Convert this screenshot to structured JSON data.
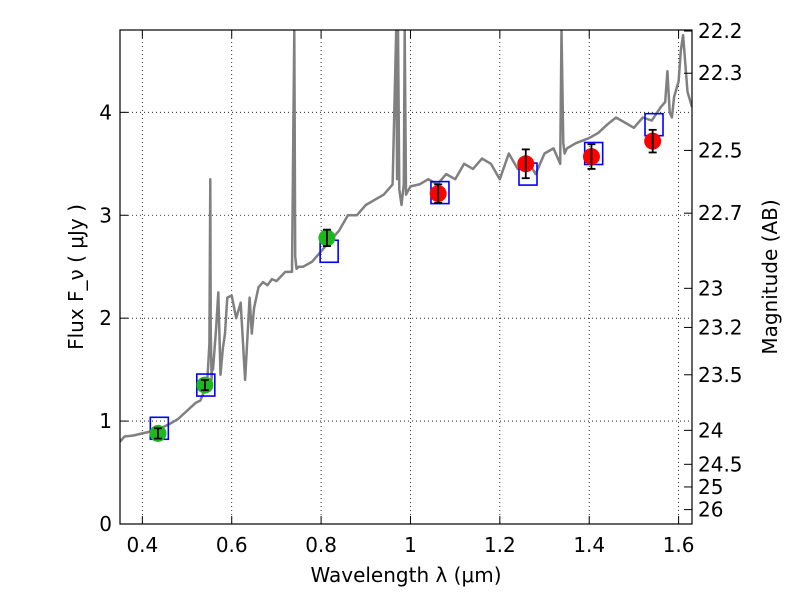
{
  "chart_data": {
    "type": "scatter",
    "xlabel": "Wavelength  λ (μm)",
    "ylabel": "Flux  F_ν  ( μJy )",
    "ylabel_right": "Magnitude (AB)",
    "xlim": [
      0.35,
      1.63
    ],
    "ylim": [
      0,
      4.8
    ],
    "grid": true,
    "x_ticks": [
      0.4,
      0.6,
      0.8,
      1.0,
      1.2,
      1.4,
      1.6
    ],
    "x_tick_labels": [
      "0.4",
      "0.6",
      "0.8",
      "1",
      "1.2",
      "1.4",
      "1.6"
    ],
    "y_ticks": [
      0,
      1,
      2,
      3,
      4
    ],
    "y_tick_labels": [
      "0",
      "1",
      "2",
      "3",
      "4"
    ],
    "right_ticks": [
      {
        "label": "22.2",
        "flux": 4.79
      },
      {
        "label": "22.3",
        "flux": 4.38
      },
      {
        "label": "22.5",
        "flux": 3.63
      },
      {
        "label": "22.7",
        "flux": 3.02
      },
      {
        "label": "23",
        "flux": 2.29
      },
      {
        "label": "23.2",
        "flux": 1.91
      },
      {
        "label": "23.5",
        "flux": 1.45
      },
      {
        "label": "24",
        "flux": 0.91
      },
      {
        "label": "24.5",
        "flux": 0.58
      },
      {
        "label": "25",
        "flux": 0.36
      },
      {
        "label": "26",
        "flux": 0.14
      }
    ],
    "series": [
      {
        "type": "line",
        "color": "#808080",
        "x": [
          0.35,
          0.36,
          0.38,
          0.4,
          0.42,
          0.44,
          0.46,
          0.48,
          0.5,
          0.52,
          0.53,
          0.545,
          0.55,
          0.552,
          0.553,
          0.555,
          0.556,
          0.558,
          0.56,
          0.565,
          0.57,
          0.575,
          0.58,
          0.585,
          0.59,
          0.6,
          0.61,
          0.62,
          0.63,
          0.64,
          0.645,
          0.65,
          0.66,
          0.67,
          0.68,
          0.69,
          0.7,
          0.72,
          0.735,
          0.74,
          0.742,
          0.745,
          0.75,
          0.76,
          0.78,
          0.8,
          0.82,
          0.84,
          0.86,
          0.88,
          0.9,
          0.92,
          0.94,
          0.96,
          0.968,
          0.97,
          0.972,
          0.975,
          0.98,
          0.985,
          0.987,
          0.99,
          1.0,
          1.02,
          1.04,
          1.06,
          1.08,
          1.1,
          1.12,
          1.14,
          1.16,
          1.18,
          1.2,
          1.22,
          1.24,
          1.26,
          1.28,
          1.3,
          1.32,
          1.335,
          1.338,
          1.342,
          1.345,
          1.35,
          1.37,
          1.4,
          1.42,
          1.44,
          1.46,
          1.48,
          1.5,
          1.52,
          1.54,
          1.56,
          1.57,
          1.575,
          1.58,
          1.585,
          1.59,
          1.6,
          1.605,
          1.61,
          1.62,
          1.63
        ],
        "y": [
          0.8,
          0.85,
          0.86,
          0.88,
          0.9,
          0.93,
          0.97,
          1.02,
          1.1,
          1.18,
          1.2,
          1.36,
          1.75,
          3.35,
          1.9,
          1.4,
          1.6,
          1.5,
          1.6,
          1.9,
          2.25,
          1.45,
          1.7,
          1.85,
          2.2,
          2.22,
          2.0,
          2.15,
          1.4,
          2.2,
          1.85,
          2.1,
          2.3,
          2.35,
          2.32,
          2.38,
          2.36,
          2.45,
          2.45,
          4.8,
          2.6,
          2.48,
          2.5,
          2.5,
          2.55,
          2.65,
          2.75,
          2.85,
          3.0,
          3.0,
          3.1,
          3.15,
          3.2,
          3.3,
          4.8,
          3.35,
          4.8,
          3.25,
          3.1,
          3.3,
          4.8,
          3.2,
          3.28,
          3.3,
          3.35,
          3.3,
          3.4,
          3.35,
          3.5,
          3.45,
          3.55,
          3.5,
          3.35,
          3.6,
          3.45,
          3.55,
          3.4,
          3.6,
          3.65,
          3.5,
          4.8,
          3.7,
          3.6,
          3.65,
          3.7,
          3.75,
          3.8,
          3.88,
          3.95,
          3.9,
          3.85,
          3.95,
          3.92,
          4.05,
          4.1,
          4.4,
          4.0,
          3.95,
          4.15,
          4.3,
          4.6,
          4.75,
          4.2,
          4.05
        ]
      },
      {
        "type": "marker",
        "marker": "square-open",
        "color": "#0000ff",
        "x": [
          0.438,
          0.542,
          0.818,
          1.066,
          1.263,
          1.41,
          1.545
        ],
        "y": [
          0.93,
          1.35,
          2.65,
          3.22,
          3.4,
          3.6,
          3.88
        ]
      },
      {
        "type": "marker",
        "marker": "circle",
        "color": "#1db81d",
        "x": [
          0.435,
          0.54,
          0.813
        ],
        "y": [
          0.88,
          1.35,
          2.78
        ],
        "yerr": [
          0.05,
          0.05,
          0.08
        ]
      },
      {
        "type": "marker",
        "marker": "circle",
        "color": "#ff0000",
        "x": [
          1.062,
          1.258,
          1.405,
          1.542
        ],
        "y": [
          3.21,
          3.5,
          3.57,
          3.72
        ],
        "yerr": [
          0.09,
          0.14,
          0.12,
          0.11
        ]
      }
    ]
  }
}
